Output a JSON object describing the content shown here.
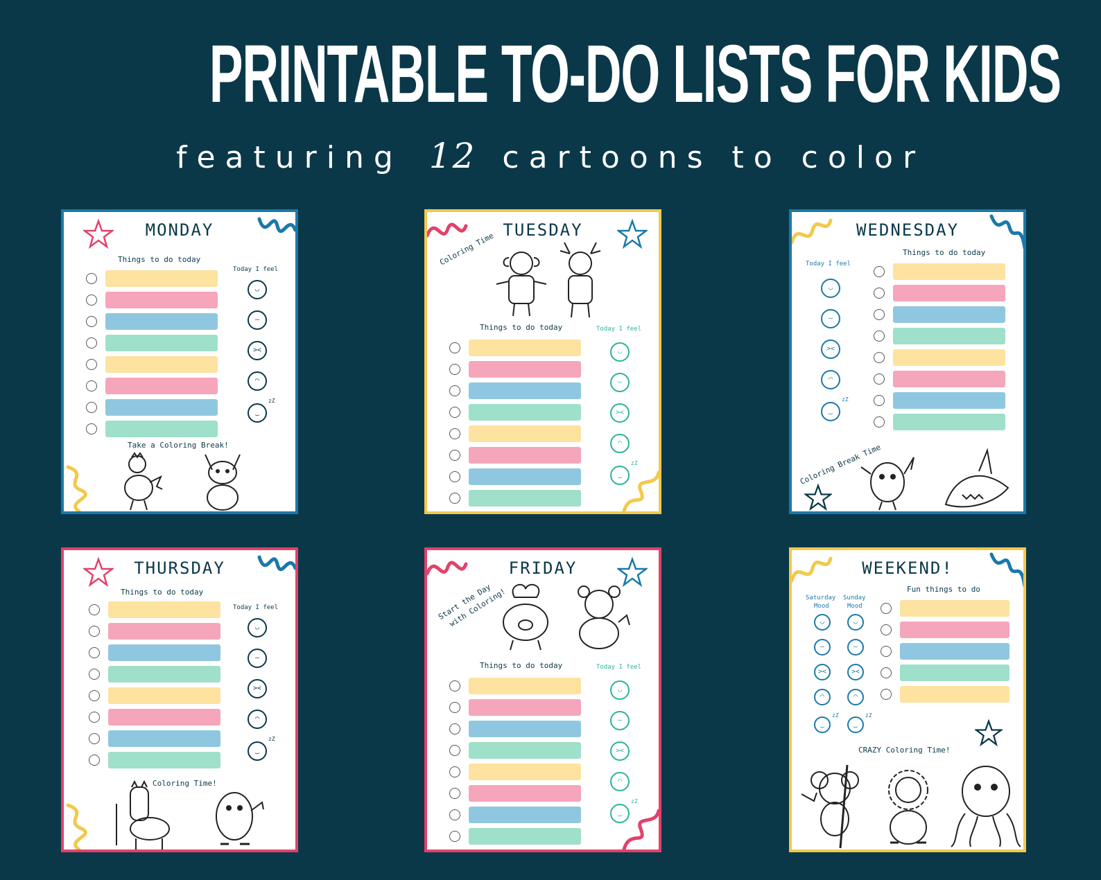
{
  "header": {
    "title": "PRINTABLE TO-DO LISTS FOR KIDS",
    "subtitle_before": "featuring",
    "subtitle_number": "12",
    "subtitle_after": "cartoons to color"
  },
  "colors": {
    "background": "#0a3849",
    "blue_border": "#1a79a9",
    "yellow_border": "#f2c94c",
    "pink_border": "#e3416b",
    "bar_yellow": "#fde2a0",
    "bar_pink": "#f5a6bb",
    "bar_blue": "#8fc7e0",
    "bar_green": "#9ee0c9"
  },
  "cards": {
    "monday": {
      "day": "MONDAY",
      "todo_label": "Things to do today",
      "mood_label": "Today I feel",
      "break_label": "Take a Coloring Break!"
    },
    "tuesday": {
      "day": "TUESDAY",
      "todo_label": "Things to do today",
      "mood_label": "Today I feel",
      "coloring_label": "Coloring Time"
    },
    "wednesday": {
      "day": "WEDNESDAY",
      "todo_label": "Things to do today",
      "mood_label": "Today I feel",
      "break_label": "Coloring Break Time"
    },
    "thursday": {
      "day": "THURSDAY",
      "todo_label": "Things to do today",
      "mood_label": "Today I feel",
      "coloring_label": "Coloring Time!"
    },
    "friday": {
      "day": "FRIDAY",
      "todo_label": "Things to do today",
      "mood_label": "Today I feel",
      "start_label_1": "Start the Day",
      "start_label_2": "with Coloring!"
    },
    "weekend": {
      "day": "WEEKEND!",
      "todo_label": "Fun things to do",
      "saturday_label_1": "Saturday",
      "saturday_label_2": "Mood",
      "sunday_label_1": "Sunday",
      "sunday_label_2": "Mood",
      "coloring_label": "CRAZY Coloring Time!"
    }
  }
}
